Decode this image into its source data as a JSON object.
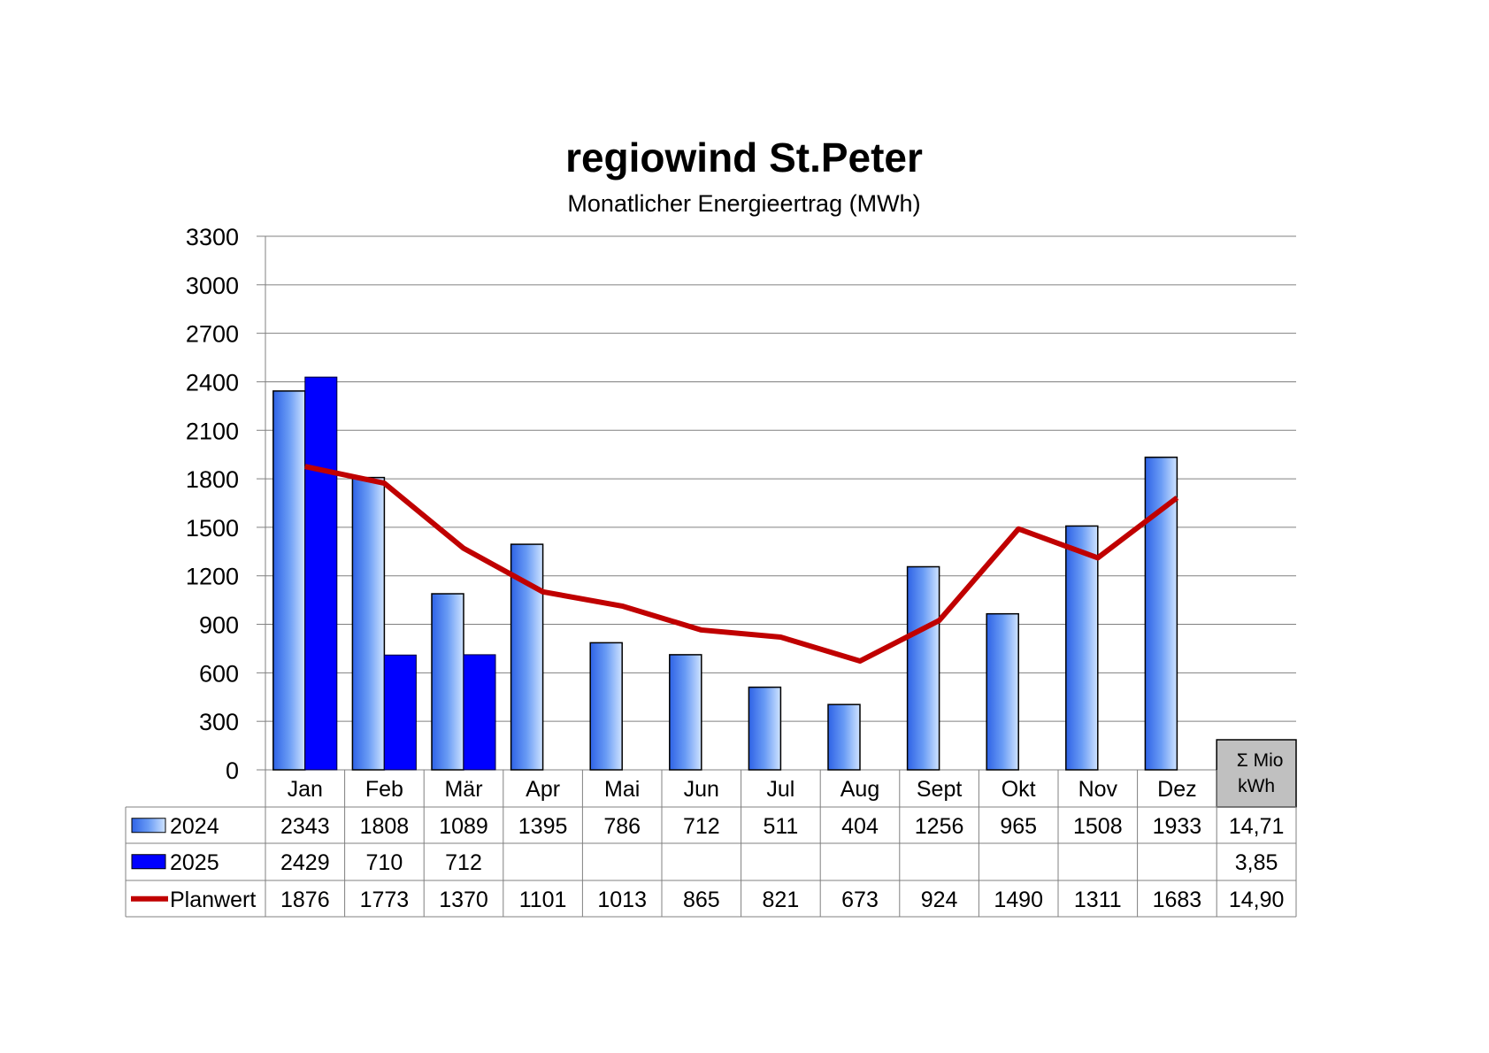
{
  "chart_data": {
    "type": "bar",
    "title": "regiowind St.Peter",
    "subtitle": "Monatlicher Energieertrag (MWh)",
    "ylim": [
      0,
      3300
    ],
    "yticks": [
      0,
      300,
      600,
      900,
      1200,
      1500,
      1800,
      2100,
      2400,
      2700,
      3000,
      3300
    ],
    "grid": true,
    "categories": [
      "Jan",
      "Feb",
      "Mär",
      "Apr",
      "Mai",
      "Jun",
      "Jul",
      "Aug",
      "Sept",
      "Okt",
      "Nov",
      "Dez"
    ],
    "series": [
      {
        "name": "2024",
        "kind": "bar",
        "color": "#3f7cf0",
        "values": [
          2343,
          1808,
          1089,
          1395,
          786,
          712,
          511,
          404,
          1256,
          965,
          1508,
          1933
        ],
        "total": "14,71"
      },
      {
        "name": "2025",
        "kind": "bar",
        "color": "#0000ff",
        "values": [
          2429,
          710,
          712,
          null,
          null,
          null,
          null,
          null,
          null,
          null,
          null,
          null
        ],
        "total": "3,85"
      },
      {
        "name": "Planwert",
        "kind": "line",
        "color": "#c00000",
        "values": [
          1876,
          1773,
          1370,
          1101,
          1013,
          865,
          821,
          673,
          924,
          1490,
          1311,
          1683
        ],
        "total": "14,90"
      }
    ],
    "total_header": [
      "Σ Mio",
      "kWh"
    ]
  }
}
